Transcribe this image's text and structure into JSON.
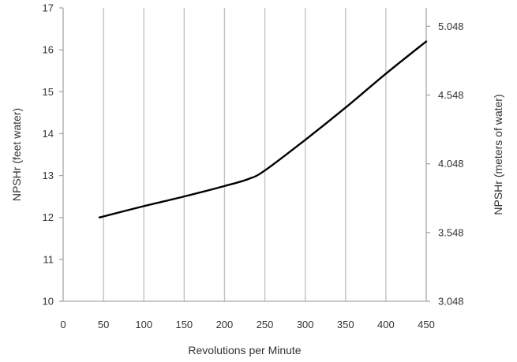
{
  "chart_data": {
    "type": "line",
    "xlabel": "Revolutions per Minute",
    "ylabel": "NPSHr (feet water)",
    "y2label": "NPSHr (meters of water)",
    "xlim": [
      0,
      450
    ],
    "ylim": [
      10,
      17
    ],
    "y2lim": [
      3.048,
      5.182
    ],
    "x_ticks": [
      0,
      50,
      100,
      150,
      200,
      250,
      300,
      350,
      400,
      450
    ],
    "y_ticks": [
      10,
      11,
      12,
      13,
      14,
      15,
      16,
      17
    ],
    "y2_ticks": [
      "3.048",
      "3.548",
      "4.048",
      "4.548",
      "5.048"
    ],
    "grid": {
      "vertical": true,
      "horizontal": false
    },
    "legend": "none",
    "series": [
      {
        "color": "#000000",
        "x": [
          45,
          100,
          150,
          200,
          230,
          250,
          300,
          350,
          400,
          450
        ],
        "values": [
          12.0,
          12.27,
          12.5,
          12.75,
          12.92,
          13.12,
          13.85,
          14.62,
          15.43,
          16.2
        ]
      }
    ]
  }
}
